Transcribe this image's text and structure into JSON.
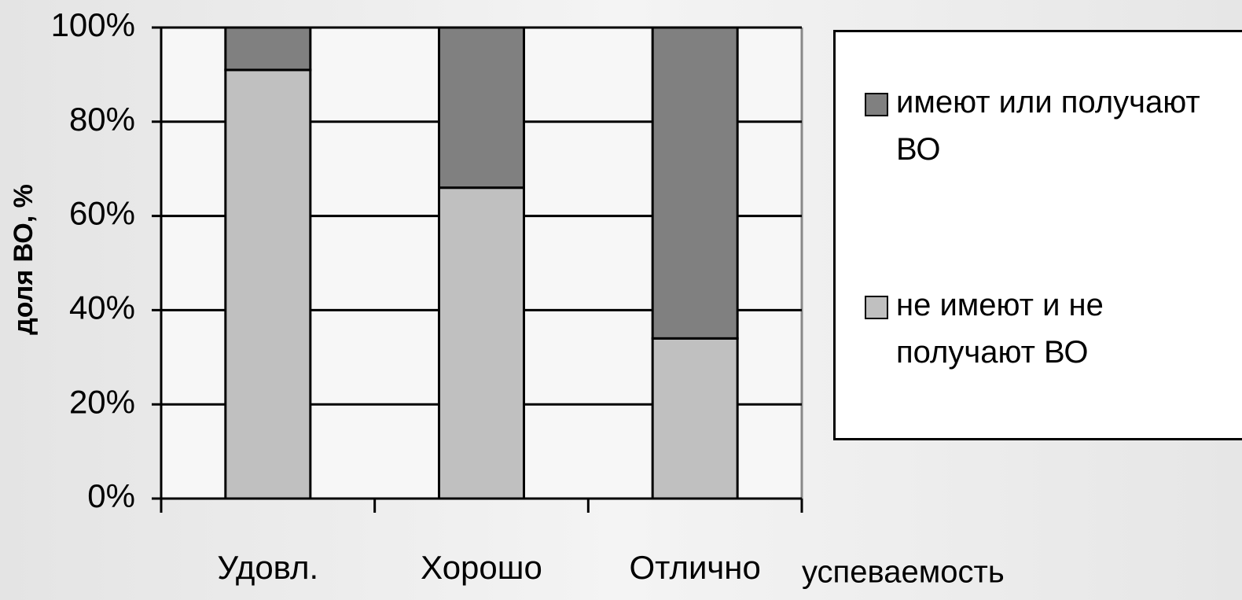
{
  "chart_data": {
    "type": "stacked_bar",
    "y_label": "доля ВО, %",
    "x_label": "успеваемость",
    "categories": [
      "Удовл.",
      "Хорошо",
      "Отлично"
    ],
    "series": [
      {
        "name": "не имеют и не получают ВО",
        "color": "#c0c0c0",
        "values": [
          91,
          66,
          34
        ]
      },
      {
        "name": "имеют или получают ВО",
        "color": "#808080",
        "values": [
          9,
          34,
          66
        ]
      }
    ],
    "ylim": [
      0,
      100
    ],
    "yticks": [
      {
        "value": 0,
        "label": "0%"
      },
      {
        "value": 20,
        "label": "20%"
      },
      {
        "value": 40,
        "label": "40%"
      },
      {
        "value": 60,
        "label": "60%"
      },
      {
        "value": 80,
        "label": "80%"
      },
      {
        "value": 100,
        "label": "100%"
      }
    ],
    "grid": true
  }
}
